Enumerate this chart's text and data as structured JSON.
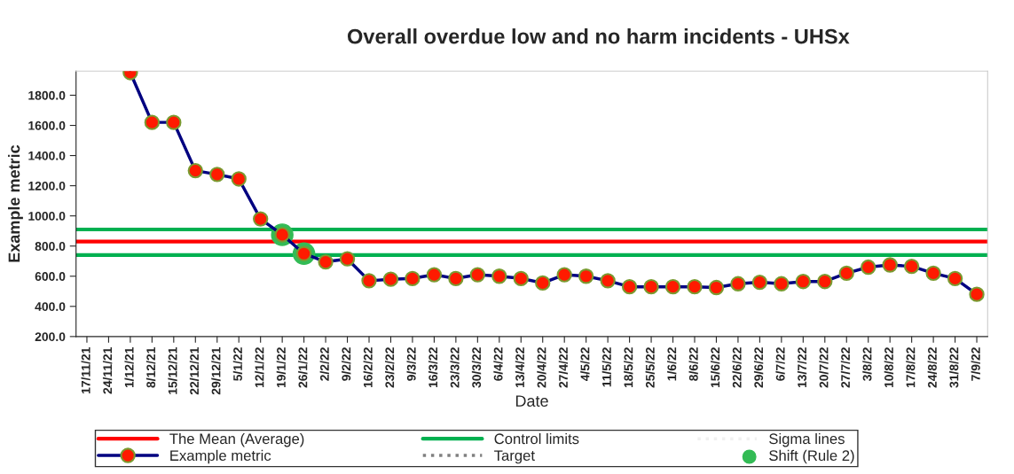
{
  "chart_data": {
    "type": "line",
    "title": "Overall overdue low and no harm incidents - UHSx",
    "xlabel": "Date",
    "ylabel": "Example metric",
    "categories": [
      "17/11/21",
      "24/11/21",
      "1/12/21",
      "8/12/21",
      "15/12/21",
      "22/12/21",
      "29/12/21",
      "5/1/22",
      "12/1/22",
      "19/1/22",
      "26/1/22",
      "2/2/22",
      "9/2/22",
      "16/2/22",
      "23/2/22",
      "9/3/22",
      "16/3/22",
      "23/3/22",
      "30/3/22",
      "6/4/22",
      "13/4/22",
      "20/4/22",
      "27/4/22",
      "4/5/22",
      "11/5/22",
      "18/5/22",
      "25/5/22",
      "1/6/22",
      "8/6/22",
      "15/6/22",
      "22/6/22",
      "29/6/22",
      "6/7/22",
      "13/7/22",
      "20/7/22",
      "27/7/22",
      "3/8/22",
      "10/8/22",
      "17/8/22",
      "24/8/22",
      "31/8/22",
      "7/9/22"
    ],
    "series": [
      {
        "name": "Example metric",
        "color": "#000080",
        "marker": "circle",
        "values": [
          null,
          null,
          1950,
          1620,
          1620,
          1300,
          1275,
          1245,
          980,
          875,
          750,
          695,
          715,
          570,
          580,
          585,
          610,
          585,
          610,
          600,
          585,
          555,
          610,
          600,
          570,
          530,
          530,
          530,
          530,
          525,
          550,
          560,
          550,
          565,
          565,
          620,
          660,
          675,
          665,
          620,
          585,
          480
        ]
      },
      {
        "name": "Target",
        "color": "#808080",
        "line_style": "dotted",
        "values": [
          null,
          null,
          null,
          null,
          null,
          null,
          null,
          null,
          null,
          null,
          null,
          null,
          null,
          null,
          null,
          null,
          null,
          null,
          null,
          null,
          null,
          null,
          null,
          null,
          null,
          null,
          null,
          null,
          null,
          null,
          null,
          null,
          null,
          null,
          null,
          null,
          null,
          null,
          null,
          null,
          null,
          null
        ]
      },
      {
        "name": "Sigma lines",
        "color": "#f0f0f0",
        "line_style": "dotted",
        "values": [
          null,
          null,
          null,
          null,
          null,
          null,
          null,
          null,
          null,
          null,
          null,
          null,
          null,
          null,
          null,
          null,
          null,
          null,
          null,
          null,
          null,
          null,
          null,
          null,
          null,
          null,
          null,
          null,
          null,
          null,
          null,
          null,
          null,
          null,
          null,
          null,
          null,
          null,
          null,
          null,
          null,
          null
        ]
      },
      {
        "name": "Shift (Rule 2)",
        "type": "scatter",
        "color": "#33bb55",
        "values": [
          null,
          null,
          null,
          null,
          null,
          null,
          null,
          null,
          null,
          875,
          750,
          null,
          null,
          null,
          null,
          null,
          null,
          null,
          null,
          null,
          null,
          null,
          null,
          null,
          null,
          null,
          null,
          null,
          null,
          null,
          null,
          null,
          null,
          null,
          null,
          null,
          null,
          null,
          null,
          null,
          null,
          null
        ]
      }
    ],
    "ref_lines": [
      {
        "axis": "y",
        "value": 830,
        "label": "The Mean (Average)",
        "color": "#ff0000"
      },
      {
        "axis": "y",
        "value": 910,
        "label": "Control limits",
        "color": "#00b050"
      },
      {
        "axis": "y",
        "value": 740,
        "color": "#00b050"
      }
    ],
    "ylim": [
      200,
      1960
    ],
    "yticks": [
      {
        "value": 200,
        "label": "200.0"
      },
      {
        "value": 400,
        "label": "400.0"
      },
      {
        "value": 600,
        "label": "600.0"
      },
      {
        "value": 800,
        "label": "800.0"
      },
      {
        "value": 1000,
        "label": "1000.0"
      },
      {
        "value": 1200,
        "label": "1200.0"
      },
      {
        "value": 1400,
        "label": "1400.0"
      },
      {
        "value": 1600,
        "label": "1600.0"
      },
      {
        "value": 1800,
        "label": "1800.0"
      }
    ],
    "legend": "bottom"
  }
}
